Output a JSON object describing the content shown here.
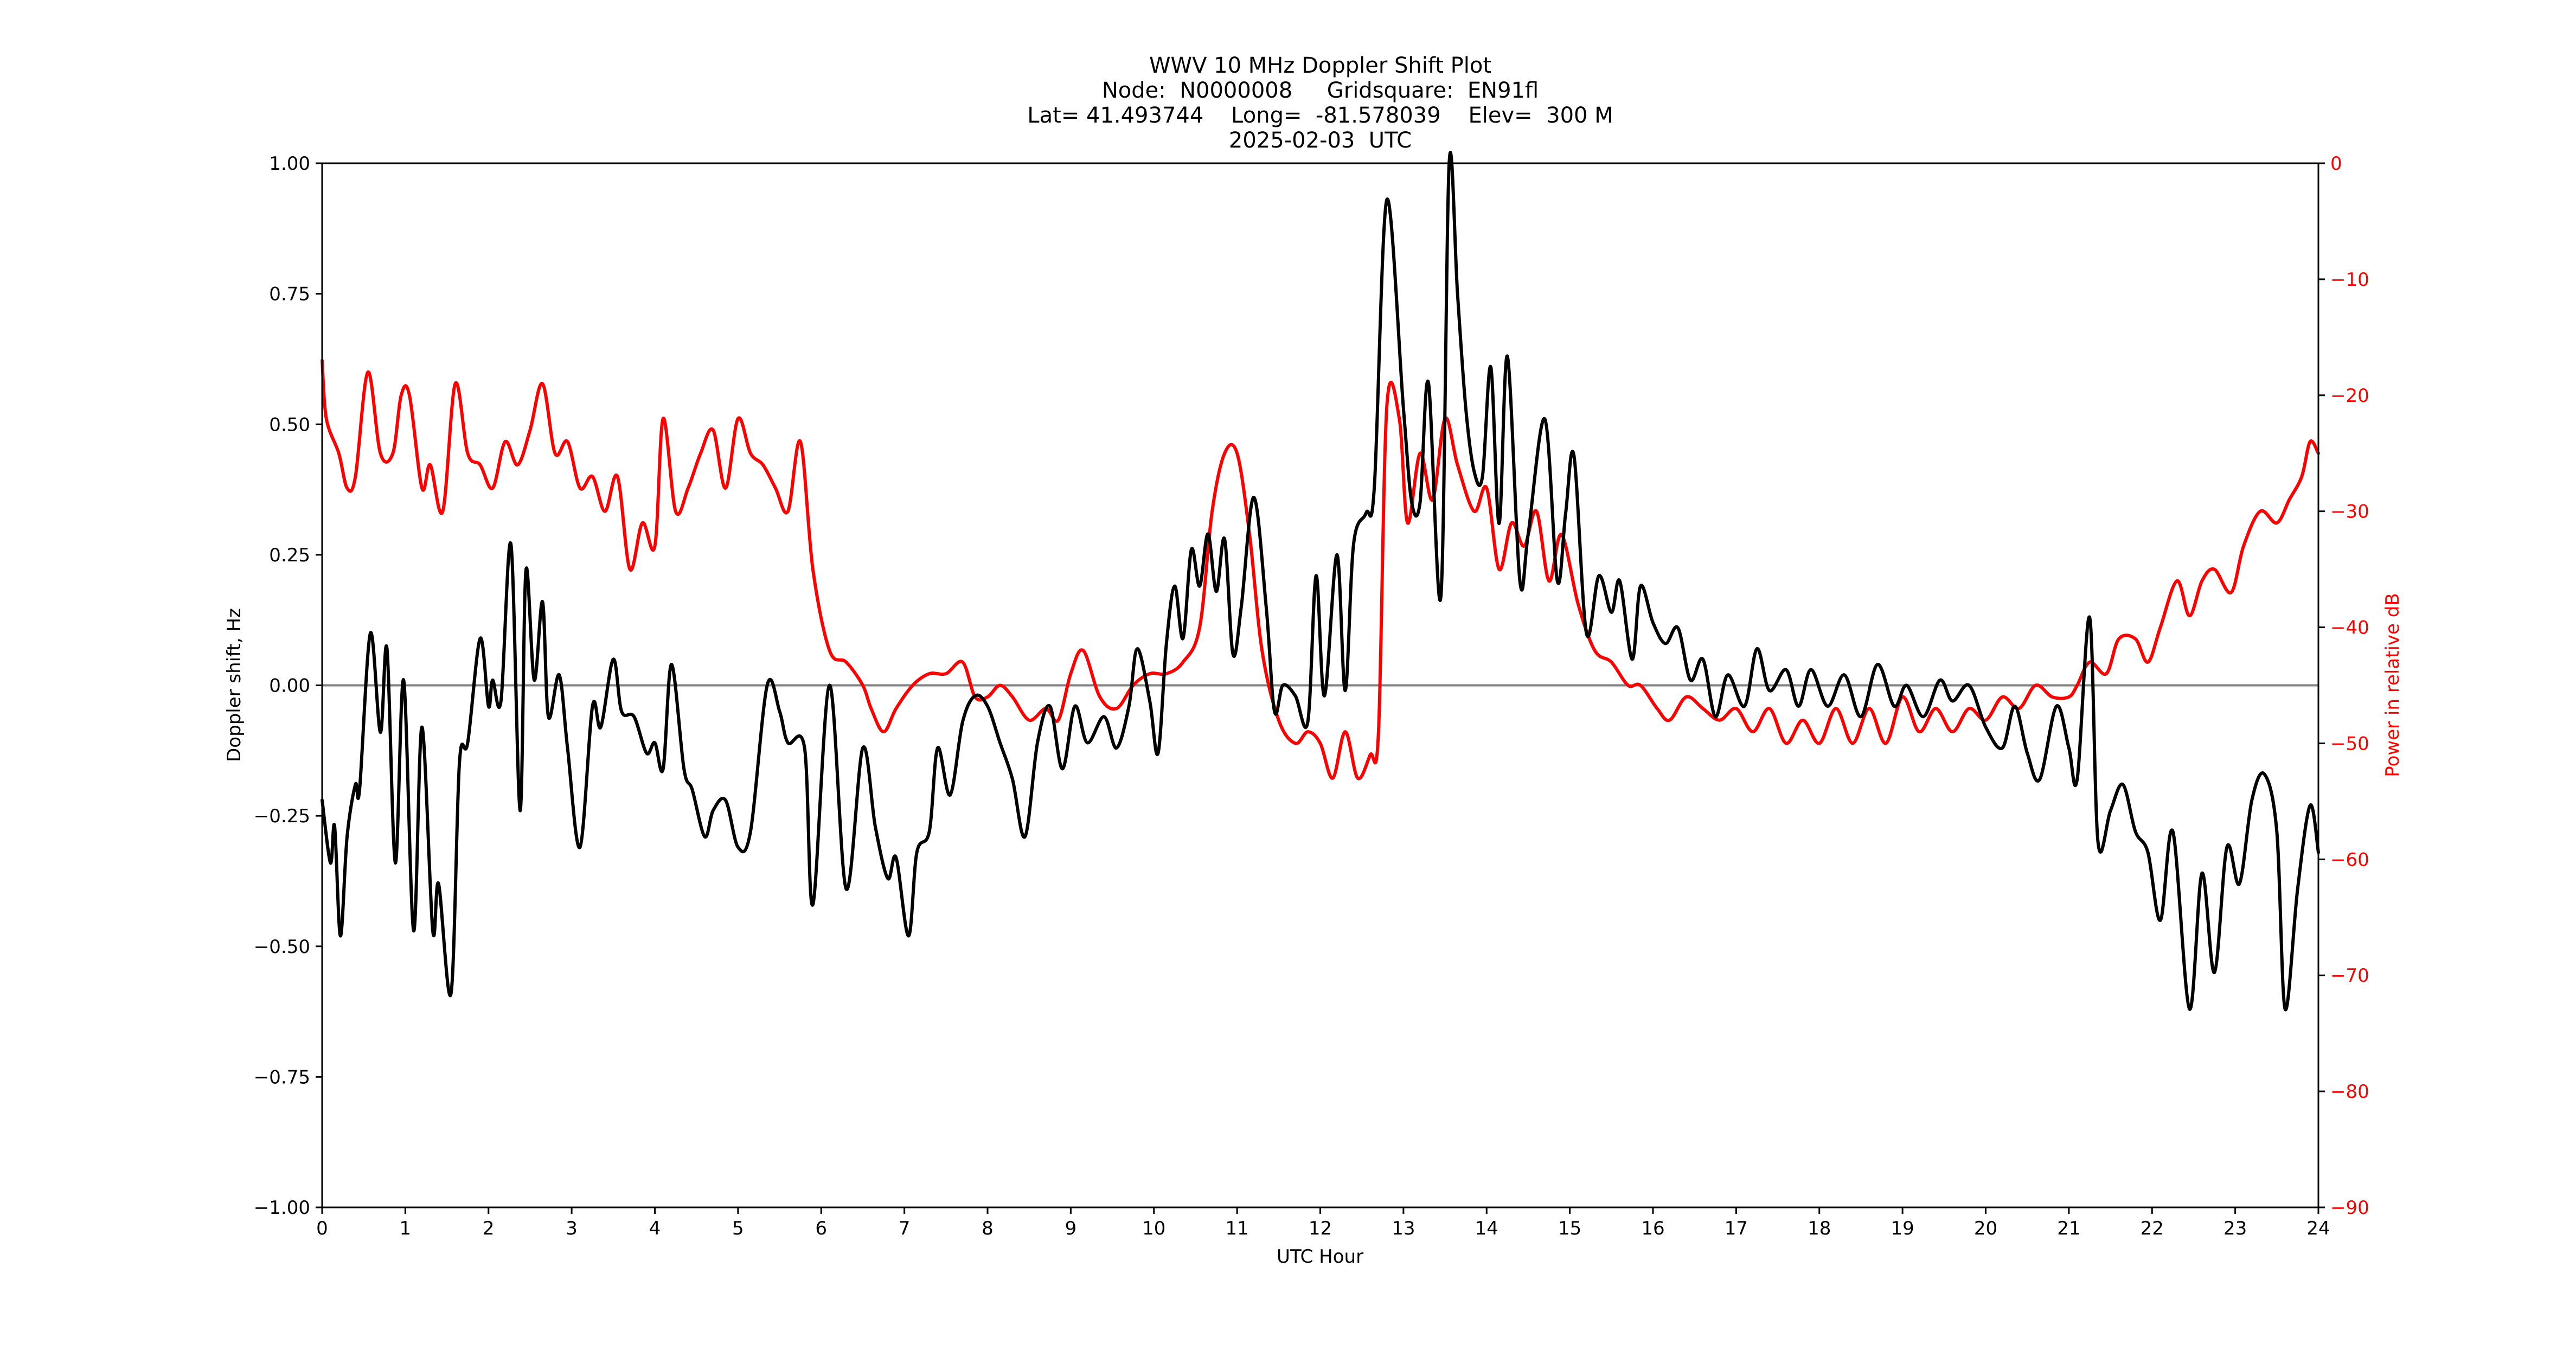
{
  "figure": {
    "title_lines": [
      "WWV 10 MHz Doppler Shift Plot",
      "Node:  N0000008     Gridsquare:  EN91fl",
      "Lat= 41.493744    Long=  -81.578039    Elev=  300 M",
      "2025-02-03  UTC"
    ],
    "colors": {
      "doppler": "#000000",
      "power": "#ff0000",
      "zero_line": "#808080",
      "axis": "#000000",
      "right_axis_text": "#ff0000"
    }
  },
  "chart_data": {
    "type": "line",
    "title": "WWV 10 MHz Doppler Shift Plot",
    "subtitle": "Node:  N0000008     Gridsquare:  EN91fl | Lat= 41.493744    Long=  -81.578039    Elev=  300 M | 2025-02-03  UTC",
    "xlabel": "UTC Hour",
    "ylabel": "Doppler shift, Hz",
    "y2label": "Power in relative dB",
    "xlim": [
      0,
      24
    ],
    "ylim": [
      -1.0,
      1.0
    ],
    "y2lim": [
      -90,
      0
    ],
    "xticks": [
      "0",
      "1",
      "2",
      "3",
      "4",
      "5",
      "6",
      "7",
      "8",
      "9",
      "10",
      "11",
      "12",
      "13",
      "14",
      "15",
      "16",
      "17",
      "18",
      "19",
      "20",
      "21",
      "22",
      "23",
      "24"
    ],
    "yticks": [
      "1.00",
      "0.75",
      "0.50",
      "0.25",
      "0.00",
      "−0.25",
      "−0.50",
      "−0.75",
      "−1.00"
    ],
    "y2ticks": [
      "0",
      "−10",
      "−20",
      "−30",
      "−40",
      "−50",
      "−60",
      "−70",
      "−80",
      "−90"
    ],
    "grid": false,
    "legend": null,
    "annotations": [
      "horizontal reference line at Doppler 0.00 Hz (gray)"
    ],
    "series": [
      {
        "name": "Doppler shift (Hz)",
        "axis": "left",
        "color": "#000000",
        "x": [
          0.0,
          0.1,
          0.15,
          0.22,
          0.3,
          0.4,
          0.45,
          0.58,
          0.7,
          0.78,
          0.88,
          0.98,
          1.1,
          1.2,
          1.33,
          1.4,
          1.55,
          1.65,
          1.75,
          1.9,
          2.0,
          2.05,
          2.15,
          2.27,
          2.38,
          2.45,
          2.55,
          2.65,
          2.72,
          2.85,
          2.95,
          3.1,
          3.25,
          3.35,
          3.5,
          3.6,
          3.75,
          3.9,
          4.0,
          4.1,
          4.2,
          4.35,
          4.45,
          4.6,
          4.7,
          4.85,
          5.0,
          5.15,
          5.35,
          5.5,
          5.6,
          5.8,
          5.9,
          6.1,
          6.3,
          6.5,
          6.65,
          6.8,
          6.9,
          7.05,
          7.15,
          7.3,
          7.4,
          7.55,
          7.7,
          7.85,
          8.0,
          8.15,
          8.3,
          8.45,
          8.6,
          8.75,
          8.9,
          9.05,
          9.2,
          9.4,
          9.55,
          9.7,
          9.8,
          9.95,
          10.05,
          10.15,
          10.25,
          10.35,
          10.45,
          10.55,
          10.65,
          10.75,
          10.85,
          10.95,
          11.05,
          11.2,
          11.35,
          11.45,
          11.55,
          11.7,
          11.85,
          11.95,
          12.05,
          12.2,
          12.3,
          12.4,
          12.55,
          12.65,
          12.8,
          13.0,
          13.1,
          13.2,
          13.3,
          13.45,
          13.55,
          13.65,
          13.75,
          13.85,
          13.95,
          14.05,
          14.15,
          14.25,
          14.4,
          14.5,
          14.7,
          14.85,
          14.95,
          15.05,
          15.2,
          15.35,
          15.5,
          15.6,
          15.75,
          15.85,
          16.0,
          16.15,
          16.3,
          16.45,
          16.6,
          16.75,
          16.9,
          17.1,
          17.25,
          17.4,
          17.6,
          17.75,
          17.9,
          18.1,
          18.3,
          18.5,
          18.7,
          18.9,
          19.05,
          19.25,
          19.45,
          19.6,
          19.8,
          20.0,
          20.2,
          20.35,
          20.5,
          20.65,
          20.85,
          21.0,
          21.1,
          21.25,
          21.35,
          21.5,
          21.65,
          21.8,
          21.95,
          22.1,
          22.25,
          22.45,
          22.6,
          22.75,
          22.9,
          23.05,
          23.2,
          23.35,
          23.5,
          23.6,
          23.75,
          23.9,
          24.0
        ],
        "values": [
          -0.22,
          -0.34,
          -0.27,
          -0.48,
          -0.29,
          -0.19,
          -0.2,
          0.1,
          -0.09,
          0.07,
          -0.34,
          0.01,
          -0.47,
          -0.08,
          -0.47,
          -0.38,
          -0.59,
          -0.15,
          -0.11,
          0.09,
          -0.04,
          0.01,
          -0.03,
          0.27,
          -0.24,
          0.22,
          0.01,
          0.16,
          -0.06,
          0.02,
          -0.12,
          -0.31,
          -0.04,
          -0.08,
          0.05,
          -0.05,
          -0.06,
          -0.13,
          -0.11,
          -0.16,
          0.04,
          -0.16,
          -0.2,
          -0.29,
          -0.24,
          -0.22,
          -0.31,
          -0.28,
          0.0,
          -0.05,
          -0.11,
          -0.12,
          -0.42,
          0.0,
          -0.39,
          -0.12,
          -0.27,
          -0.37,
          -0.33,
          -0.48,
          -0.32,
          -0.28,
          -0.12,
          -0.21,
          -0.07,
          -0.02,
          -0.04,
          -0.11,
          -0.18,
          -0.29,
          -0.11,
          -0.04,
          -0.16,
          -0.04,
          -0.11,
          -0.06,
          -0.12,
          -0.04,
          0.07,
          -0.03,
          -0.13,
          0.08,
          0.19,
          0.09,
          0.26,
          0.19,
          0.29,
          0.18,
          0.28,
          0.06,
          0.15,
          0.36,
          0.15,
          -0.05,
          0.0,
          -0.02,
          -0.07,
          0.21,
          -0.02,
          0.25,
          -0.01,
          0.27,
          0.33,
          0.38,
          0.93,
          0.53,
          0.35,
          0.35,
          0.58,
          0.17,
          1.0,
          0.75,
          0.53,
          0.41,
          0.4,
          0.61,
          0.31,
          0.63,
          0.2,
          0.29,
          0.51,
          0.2,
          0.33,
          0.44,
          0.1,
          0.21,
          0.14,
          0.2,
          0.05,
          0.19,
          0.12,
          0.08,
          0.11,
          0.01,
          0.05,
          -0.06,
          0.02,
          -0.04,
          0.07,
          -0.01,
          0.03,
          -0.04,
          0.03,
          -0.04,
          0.02,
          -0.06,
          0.04,
          -0.04,
          0.0,
          -0.06,
          0.01,
          -0.03,
          0.0,
          -0.08,
          -0.12,
          -0.04,
          -0.13,
          -0.18,
          -0.04,
          -0.12,
          -0.18,
          0.13,
          -0.3,
          -0.24,
          -0.19,
          -0.28,
          -0.32,
          -0.45,
          -0.28,
          -0.62,
          -0.36,
          -0.55,
          -0.31,
          -0.38,
          -0.22,
          -0.17,
          -0.28,
          -0.62,
          -0.39,
          -0.23,
          -0.32
        ]
      },
      {
        "name": "Power (relative dB)",
        "axis": "right",
        "color": "#ff0000",
        "x": [
          0.0,
          0.05,
          0.2,
          0.3,
          0.4,
          0.55,
          0.7,
          0.85,
          0.95,
          1.05,
          1.2,
          1.3,
          1.45,
          1.6,
          1.75,
          1.9,
          2.05,
          2.2,
          2.35,
          2.5,
          2.65,
          2.8,
          2.95,
          3.1,
          3.25,
          3.4,
          3.55,
          3.7,
          3.85,
          4.0,
          4.1,
          4.25,
          4.4,
          4.55,
          4.7,
          4.85,
          5.0,
          5.15,
          5.3,
          5.45,
          5.6,
          5.75,
          5.9,
          6.1,
          6.3,
          6.5,
          6.6,
          6.75,
          6.9,
          7.1,
          7.3,
          7.5,
          7.7,
          7.85,
          8.0,
          8.15,
          8.3,
          8.5,
          8.7,
          8.85,
          9.0,
          9.15,
          9.35,
          9.55,
          9.75,
          9.95,
          10.15,
          10.35,
          10.55,
          10.7,
          10.85,
          11.0,
          11.15,
          11.3,
          11.5,
          11.7,
          11.85,
          12.0,
          12.15,
          12.3,
          12.45,
          12.6,
          12.7,
          12.8,
          12.95,
          13.05,
          13.2,
          13.35,
          13.5,
          13.65,
          13.85,
          14.0,
          14.15,
          14.3,
          14.45,
          14.6,
          14.75,
          14.9,
          15.1,
          15.3,
          15.5,
          15.7,
          15.85,
          16.05,
          16.2,
          16.4,
          16.6,
          16.8,
          17.0,
          17.2,
          17.4,
          17.6,
          17.8,
          18.0,
          18.2,
          18.4,
          18.6,
          18.8,
          19.0,
          19.2,
          19.4,
          19.6,
          19.8,
          20.0,
          20.2,
          20.4,
          20.6,
          20.8,
          21.0,
          21.1,
          21.25,
          21.45,
          21.6,
          21.8,
          21.95,
          22.1,
          22.3,
          22.45,
          22.6,
          22.75,
          22.95,
          23.1,
          23.3,
          23.5,
          23.65,
          23.8,
          23.9,
          24.0
        ],
        "values": [
          -17,
          -22,
          -25,
          -28,
          -27,
          -18,
          -25,
          -25,
          -20,
          -20,
          -28,
          -26,
          -30,
          -19,
          -25,
          -26,
          -28,
          -24,
          -26,
          -23,
          -19,
          -25,
          -24,
          -28,
          -27,
          -30,
          -27,
          -35,
          -31,
          -33,
          -22,
          -30,
          -28,
          -25,
          -23,
          -28,
          -22,
          -25,
          -26,
          -28,
          -30,
          -24,
          -35,
          -42,
          -43,
          -45,
          -47,
          -49,
          -47,
          -45,
          -44,
          -44,
          -43,
          -46,
          -46,
          -45,
          -46,
          -48,
          -47,
          -48,
          -44,
          -42,
          -46,
          -47,
          -45,
          -44,
          -44,
          -43,
          -40,
          -30,
          -25,
          -25,
          -32,
          -42,
          -48,
          -50,
          -49,
          -50,
          -53,
          -49,
          -53,
          -51,
          -49,
          -21,
          -22,
          -31,
          -25,
          -29,
          -22,
          -26,
          -30,
          -28,
          -35,
          -31,
          -33,
          -30,
          -36,
          -32,
          -38,
          -42,
          -43,
          -45,
          -45,
          -47,
          -48,
          -46,
          -47,
          -48,
          -47,
          -49,
          -47,
          -50,
          -48,
          -50,
          -47,
          -50,
          -47,
          -50,
          -46,
          -49,
          -47,
          -49,
          -47,
          -48,
          -46,
          -47,
          -45,
          -46,
          -46,
          -45,
          -43,
          -44,
          -41,
          -41,
          -43,
          -40,
          -36,
          -39,
          -36,
          -35,
          -37,
          -33,
          -30,
          -31,
          -29,
          -27,
          -24,
          -25
        ]
      }
    ]
  }
}
